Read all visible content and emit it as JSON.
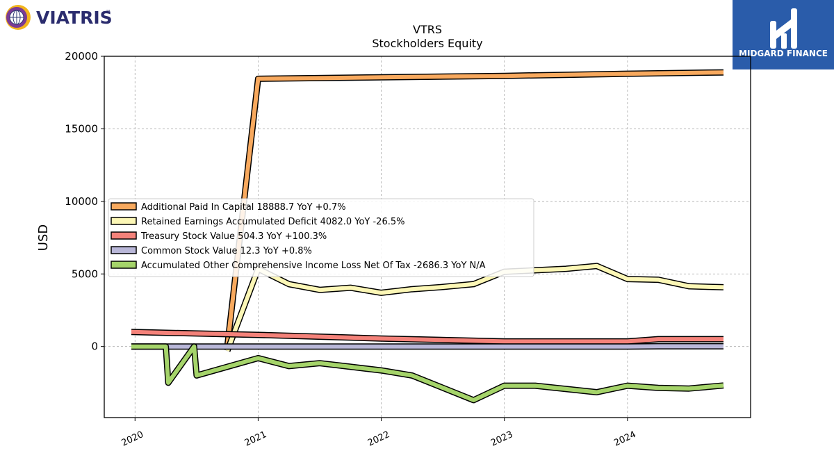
{
  "brand": {
    "left_logo_text": "VIATRIS",
    "left_logo_mark": "™",
    "right_logo_text": "MIDGARD FINANCE",
    "right_logo_bg": "#2a5caa"
  },
  "chart_data": {
    "type": "line",
    "title": "VTRS",
    "subtitle": "Stockholders  Equity",
    "xlabel": "",
    "ylabel": "USD",
    "ylim": [
      -4900,
      20000
    ],
    "xlim": [
      2019.75,
      2025.0
    ],
    "yticks": [
      0,
      5000,
      10000,
      15000,
      20000
    ],
    "xticks": [
      2020,
      2021,
      2022,
      2023,
      2024
    ],
    "ytick_labels": [
      "0",
      "5000",
      "10000",
      "15000",
      "20000"
    ],
    "xtick_labels": [
      "2020",
      "2021",
      "2022",
      "2023",
      "2024"
    ],
    "grid": true,
    "legend_position": "center-left",
    "series": [
      {
        "name": "Additional Paid In Capital  18888.7 YoY +0.7%",
        "color": "#f8a95e",
        "points": [
          [
            2020.75,
            0
          ],
          [
            2021.0,
            18450
          ],
          [
            2022.0,
            18550
          ],
          [
            2023.0,
            18650
          ],
          [
            2024.0,
            18800
          ],
          [
            2024.78,
            18888.7
          ]
        ]
      },
      {
        "name": "Retained Earnings Accumulated Deficit  4082.0 YoY -26.5%",
        "color": "#fcf7b6",
        "points": [
          [
            2020.75,
            -300
          ],
          [
            2021.0,
            5350
          ],
          [
            2021.25,
            4300
          ],
          [
            2021.5,
            3900
          ],
          [
            2021.75,
            4050
          ],
          [
            2022.0,
            3700
          ],
          [
            2022.25,
            3950
          ],
          [
            2022.5,
            4100
          ],
          [
            2022.75,
            4300
          ],
          [
            2023.0,
            5150
          ],
          [
            2023.25,
            5250
          ],
          [
            2023.5,
            5350
          ],
          [
            2023.75,
            5550
          ],
          [
            2024.0,
            4650
          ],
          [
            2024.25,
            4600
          ],
          [
            2024.5,
            4150
          ],
          [
            2024.78,
            4082.0
          ]
        ]
      },
      {
        "name": "Treasury Stock Value  504.3 YoY +100.3%",
        "color": "#f4827a",
        "points": [
          [
            2019.97,
            1000
          ],
          [
            2021.0,
            800
          ],
          [
            2022.0,
            550
          ],
          [
            2023.0,
            350
          ],
          [
            2024.0,
            350
          ],
          [
            2024.25,
            504.3
          ],
          [
            2024.78,
            504.3
          ]
        ]
      },
      {
        "name": "Common Stock Value  12.3 YoY +0.8%",
        "color": "#b9b7d8",
        "points": [
          [
            2019.97,
            0
          ],
          [
            2024.0,
            0
          ],
          [
            2024.25,
            12.3
          ],
          [
            2024.78,
            12.3
          ]
        ]
      },
      {
        "name": "Accumulated Other Comprehensive Income Loss Net Of Tax  -2686.3 YoY N/A",
        "color": "#a5d46a",
        "points": [
          [
            2019.97,
            0
          ],
          [
            2020.25,
            0
          ],
          [
            2020.27,
            -2500
          ],
          [
            2020.48,
            0
          ],
          [
            2020.5,
            -2000
          ],
          [
            2021.0,
            -800
          ],
          [
            2021.25,
            -1350
          ],
          [
            2021.5,
            -1150
          ],
          [
            2021.75,
            -1400
          ],
          [
            2022.0,
            -1650
          ],
          [
            2022.25,
            -2000
          ],
          [
            2022.75,
            -3700
          ],
          [
            2023.0,
            -2700
          ],
          [
            2023.25,
            -2700
          ],
          [
            2023.75,
            -3150
          ],
          [
            2024.0,
            -2700
          ],
          [
            2024.25,
            -2850
          ],
          [
            2024.5,
            -2900
          ],
          [
            2024.78,
            -2686.3
          ]
        ]
      }
    ]
  }
}
